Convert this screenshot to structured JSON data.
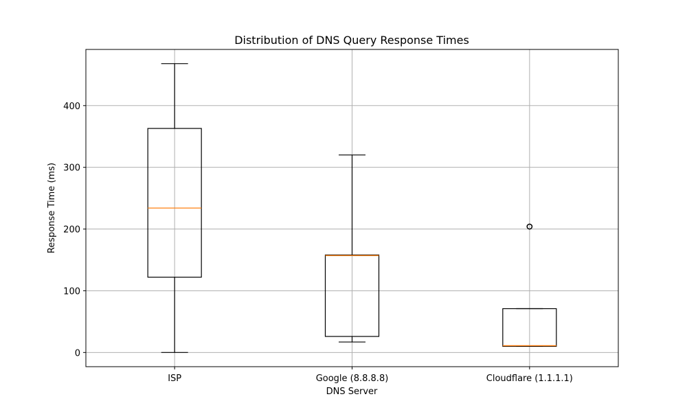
{
  "chart_data": {
    "type": "box",
    "title": "Distribution of DNS Query Response Times",
    "xlabel": "DNS Server",
    "ylabel": "Response Time (ms)",
    "ylim": [
      -23,
      491
    ],
    "yticks": [
      0,
      100,
      200,
      300,
      400
    ],
    "grid": true,
    "categories": [
      "ISP",
      "Google (8.8.8.8)",
      "Cloudflare (1.1.1.1)"
    ],
    "boxes": [
      {
        "label": "ISP",
        "whisker_low": 0,
        "q1": 122,
        "median": 234,
        "q3": 363,
        "whisker_high": 468,
        "outliers": []
      },
      {
        "label": "Google (8.8.8.8)",
        "whisker_low": 17,
        "q1": 26,
        "median": 157,
        "q3": 158,
        "whisker_high": 320,
        "outliers": []
      },
      {
        "label": "Cloudflare (1.1.1.1)",
        "whisker_low": 10,
        "q1": 10,
        "median": 11,
        "q3": 71,
        "whisker_high": 71,
        "outliers": [
          204
        ]
      }
    ],
    "colors": {
      "box": "#000000",
      "median": "#ff7f0e",
      "grid": "#b0b0b0"
    }
  }
}
